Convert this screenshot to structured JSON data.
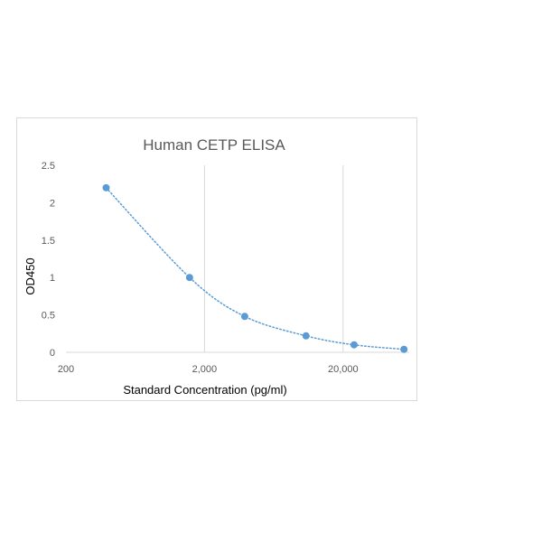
{
  "chart_data": {
    "type": "scatter",
    "title": "Human CETP ELISA",
    "xlabel": "Standard Concentration (pg/ml)",
    "ylabel": "OD450",
    "x_scale": "log",
    "xlim": [
      200,
      60000
    ],
    "ylim": [
      0,
      2.5
    ],
    "x_ticks": [
      200,
      2000,
      20000
    ],
    "x_tick_labels": [
      "200",
      "2,000",
      "20,000"
    ],
    "y_ticks": [
      0,
      0.5,
      1,
      1.5,
      2,
      2.5
    ],
    "y_tick_labels": [
      "0",
      "0.5",
      "1",
      "1.5",
      "2",
      "2.5"
    ],
    "grid": "vertical major gridlines",
    "legend": "none",
    "trendline": "dotted smooth curve",
    "colors": {
      "series": "#5b9bd5",
      "grid": "#d9d9d9",
      "text": "#595959",
      "frame": "#d9d9d9"
    },
    "series": [
      {
        "x": [
          390,
          1560,
          3900,
          10800,
          24000,
          55000
        ],
        "y": [
          2.2,
          1.0,
          0.48,
          0.22,
          0.1,
          0.04
        ]
      }
    ]
  }
}
